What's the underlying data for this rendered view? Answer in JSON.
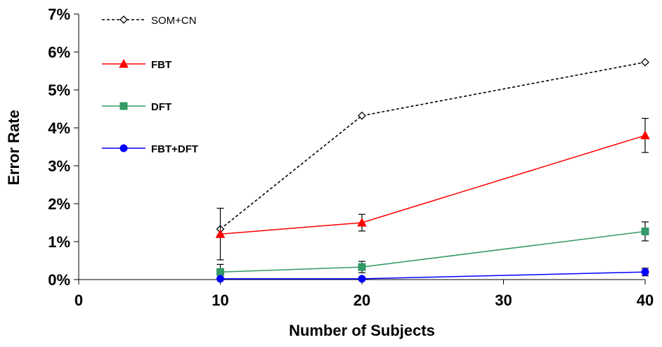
{
  "chart_data": {
    "type": "line",
    "xlabel": "Number of Subjects",
    "ylabel": "Error Rate",
    "xlim": [
      0,
      40
    ],
    "ylim": [
      0,
      7
    ],
    "x_ticks": [
      "0",
      "10",
      "20",
      "30",
      "40"
    ],
    "y_ticks": [
      "0%",
      "1%",
      "2%",
      "3%",
      "4%",
      "5%",
      "6%",
      "7%"
    ],
    "legend_position": "top-left",
    "grid": false,
    "series": [
      {
        "name": "SOM+CN",
        "color": "#000000",
        "dashed": true,
        "marker": "diamond-open",
        "x": [
          10,
          20,
          40
        ],
        "values": [
          1.33,
          4.32,
          5.73
        ],
        "error": null
      },
      {
        "name": "FBT",
        "color": "#ff0000",
        "dashed": false,
        "marker": "triangle",
        "x": [
          10,
          20,
          40
        ],
        "values": [
          1.2,
          1.5,
          3.8
        ],
        "error": [
          0.68,
          0.22,
          0.45
        ]
      },
      {
        "name": "DFT",
        "color": "#339966",
        "dashed": false,
        "marker": "square",
        "x": [
          10,
          20,
          40
        ],
        "values": [
          0.2,
          0.33,
          1.27
        ],
        "error": [
          0.2,
          0.15,
          0.25
        ]
      },
      {
        "name": "FBT+DFT",
        "color": "#0000ff",
        "dashed": false,
        "marker": "circle",
        "x": [
          10,
          20,
          40
        ],
        "values": [
          0.02,
          0.02,
          0.2
        ],
        "error": [
          0.0,
          0.0,
          0.1
        ]
      }
    ]
  }
}
